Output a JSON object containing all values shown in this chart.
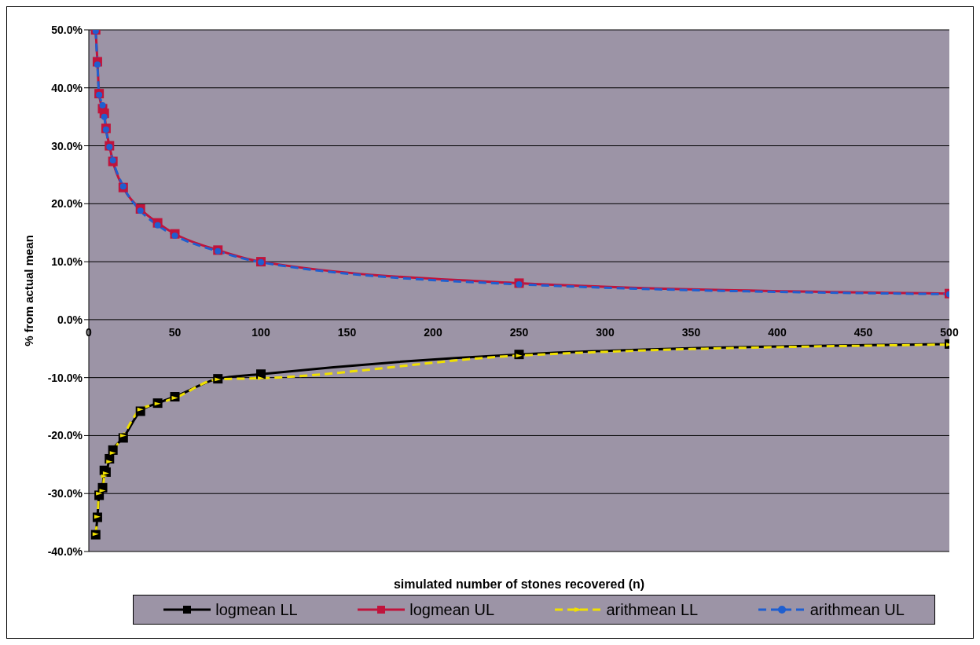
{
  "chart_data": {
    "type": "line",
    "xlabel": "simulated number of stones recovered (n)",
    "ylabel": "% from actual mean",
    "x": [
      4,
      5,
      6,
      8,
      9,
      10,
      12,
      14,
      20,
      30,
      40,
      50,
      75,
      100,
      250,
      500
    ],
    "series": [
      {
        "name": "logmean LL",
        "color": "#000000",
        "marker": "square",
        "line_style": "solid",
        "values": [
          -37.1,
          -34.1,
          -30.3,
          -29,
          -26,
          -26.3,
          -24,
          -22.5,
          -20.4,
          -15.8,
          -14.4,
          -13.3,
          -10.2,
          -9.4,
          -6.0,
          -4.2
        ]
      },
      {
        "name": "logmean UL",
        "color": "#c0143c",
        "marker": "square",
        "line_style": "solid",
        "values": [
          50,
          44.5,
          39,
          36.4,
          35.6,
          33,
          30,
          27.3,
          22.8,
          19.1,
          16.7,
          14.8,
          12.0,
          10.0,
          6.3,
          4.5
        ]
      },
      {
        "name": "arithmean LL",
        "color": "#f0e000",
        "marker": "triangle",
        "line_style": "dashed",
        "values": [
          -37,
          -34,
          -30,
          -29.5,
          -27,
          -26.5,
          -24.5,
          -23,
          -20,
          -15.5,
          -14.5,
          -13.5,
          -10.3,
          -10.1,
          -6.2,
          -4.3
        ]
      },
      {
        "name": "arithmean UL",
        "color": "#1f5fd0",
        "marker": "circle",
        "line_style": "dashed",
        "values": [
          49.8,
          44,
          38.8,
          37,
          35,
          32.8,
          29.8,
          27.5,
          23,
          18.8,
          16.3,
          14.5,
          11.8,
          9.9,
          6.1,
          4.4
        ]
      }
    ],
    "xlim": [
      0,
      500
    ],
    "xticks": [
      0,
      50,
      100,
      150,
      200,
      250,
      300,
      350,
      400,
      450,
      500
    ],
    "ylim": [
      -40,
      50
    ],
    "yticks": [
      {
        "value": -40,
        "label": "-40.0%"
      },
      {
        "value": -30,
        "label": "-30.0%"
      },
      {
        "value": -20,
        "label": "-20.0%"
      },
      {
        "value": -10,
        "label": "-10.0%"
      },
      {
        "value": 0,
        "label": "0.0%"
      },
      {
        "value": 10,
        "label": "10.0%"
      },
      {
        "value": 20,
        "label": "20.0%"
      },
      {
        "value": 30,
        "label": "30.0%"
      },
      {
        "value": 40,
        "label": "40.0%"
      },
      {
        "value": 50,
        "label": "50.0%"
      }
    ],
    "grid": "y",
    "legend": "bottom"
  }
}
